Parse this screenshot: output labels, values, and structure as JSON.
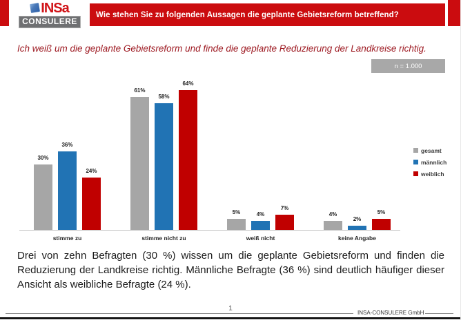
{
  "header": {
    "logo_text": "INSa",
    "logo_subtext": "CONSULERE",
    "title": "Wie stehen Sie zu folgenden Aussagen die geplante Gebietsreform betreffend?"
  },
  "subtitle": "Ich weiß um die geplante Gebietsreform und finde die geplante Reduzierung der Landkreise richtig.",
  "sample_badge": "n = 1.000",
  "chart_data": {
    "type": "bar",
    "categories": [
      "stimme zu",
      "stimme nicht zu",
      "weiß nicht",
      "keine Angabe"
    ],
    "series": [
      {
        "name": "gesamt",
        "color": "#a6a6a6",
        "values": [
          30,
          61,
          5,
          4
        ]
      },
      {
        "name": "männlich",
        "color": "#2173b4",
        "values": [
          36,
          58,
          4,
          2
        ]
      },
      {
        "name": "weiblich",
        "color": "#c00000",
        "values": [
          24,
          64,
          7,
          5
        ]
      }
    ],
    "value_suffix": "%",
    "title": "",
    "xlabel": "",
    "ylabel": "",
    "ylim": [
      0,
      67
    ],
    "grid": false,
    "legend_position": "right",
    "value_labels": true
  },
  "body_text": "Drei von zehn Befragten (30 %) wissen um die geplante Gebietsreform und finden die Reduzierung der Landkreise richtig. Männliche Befragte (36 %) sind deutlich häufiger dieser Ansicht als weibliche Befragte (24 %).",
  "footer": {
    "page_number": "1",
    "company": "INSA-CONSULERE GmbH"
  }
}
